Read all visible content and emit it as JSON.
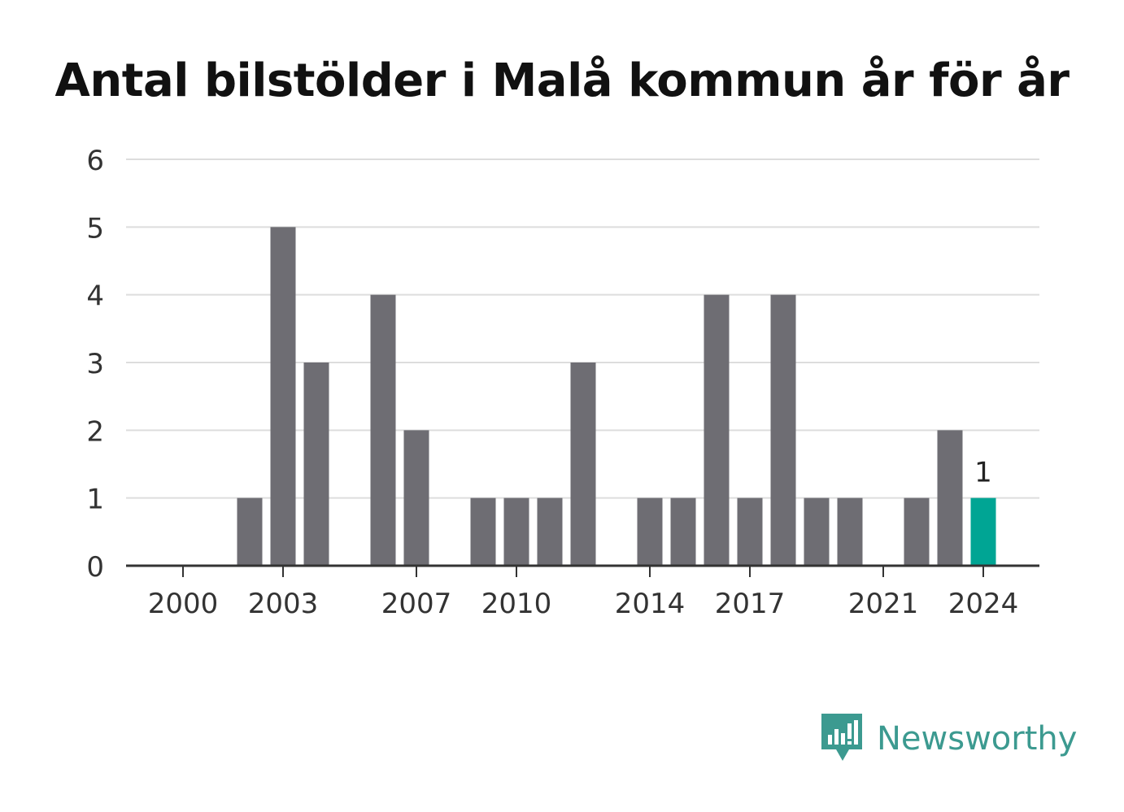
{
  "title": "Antal bilstölder i Malå kommun år för år",
  "brand": {
    "name": "Newsworthy",
    "icon": "newsworthy-logo-icon",
    "color": "#3c9a90"
  },
  "colors": {
    "bar": "#6e6d73",
    "highlight": "#00a594",
    "grid": "#dddddd",
    "axis": "#333333",
    "tick_text": "#333333"
  },
  "chart_data": {
    "type": "bar",
    "title": "Antal bilstölder i Malå kommun år för år",
    "xlabel": "",
    "ylabel": "",
    "categories": [
      "2000",
      "2001",
      "2002",
      "2003",
      "2004",
      "2005",
      "2006",
      "2007",
      "2008",
      "2009",
      "2010",
      "2011",
      "2012",
      "2013",
      "2014",
      "2015",
      "2016",
      "2017",
      "2018",
      "2019",
      "2020",
      "2021",
      "2022",
      "2023",
      "2024"
    ],
    "values": [
      0,
      0,
      1,
      5,
      3,
      0,
      4,
      2,
      0,
      1,
      1,
      1,
      3,
      0,
      1,
      1,
      4,
      1,
      4,
      1,
      1,
      0,
      1,
      2,
      1
    ],
    "x_tick_labels": [
      "2000",
      "2003",
      "2007",
      "2010",
      "2014",
      "2017",
      "2021",
      "2024"
    ],
    "y_tick_labels": [
      "0",
      "1",
      "2",
      "3",
      "4",
      "5",
      "6"
    ],
    "ylim": [
      0,
      6
    ],
    "grid": true,
    "highlight_category": "2024",
    "data_labels": [
      {
        "category": "2024",
        "text": "1"
      }
    ]
  }
}
